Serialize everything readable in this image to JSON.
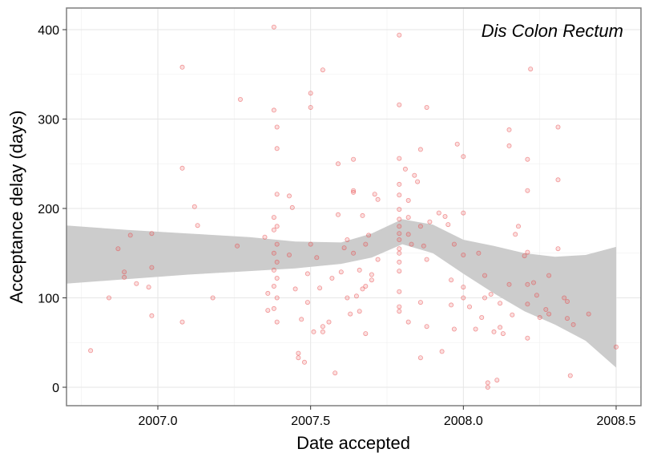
{
  "chart_data": {
    "type": "scatter",
    "title": "Dis Colon Rectum",
    "xlabel": "Date accepted",
    "ylabel": "Acceptance delay (days)",
    "xlim": [
      2006.7,
      2008.55
    ],
    "ylim": [
      -20,
      425
    ],
    "x_ticks": [
      2007.0,
      2007.5,
      2008.0,
      2008.5
    ],
    "x_tick_labels": [
      "2007.0",
      "2007.5",
      "2008.0",
      "2008.5"
    ],
    "y_ticks": [
      0,
      100,
      200,
      300,
      400
    ],
    "y_tick_labels": [
      "0",
      "100",
      "200",
      "300",
      "400"
    ],
    "grid": true,
    "point_color": "#e8484a",
    "band_color": "#cccccc",
    "points": [
      [
        2006.78,
        41
      ],
      [
        2006.84,
        100
      ],
      [
        2006.87,
        155
      ],
      [
        2006.89,
        123
      ],
      [
        2006.89,
        129
      ],
      [
        2006.91,
        170
      ],
      [
        2006.93,
        116
      ],
      [
        2006.97,
        112
      ],
      [
        2006.98,
        172
      ],
      [
        2006.98,
        80
      ],
      [
        2006.98,
        134
      ],
      [
        2007.08,
        358
      ],
      [
        2007.08,
        245
      ],
      [
        2007.08,
        73
      ],
      [
        2007.12,
        202
      ],
      [
        2007.13,
        181
      ],
      [
        2007.18,
        100
      ],
      [
        2007.26,
        158
      ],
      [
        2007.27,
        322
      ],
      [
        2007.35,
        168
      ],
      [
        2007.36,
        105
      ],
      [
        2007.36,
        86
      ],
      [
        2007.38,
        403
      ],
      [
        2007.38,
        310
      ],
      [
        2007.39,
        291
      ],
      [
        2007.39,
        267
      ],
      [
        2007.39,
        216
      ],
      [
        2007.38,
        190
      ],
      [
        2007.39,
        180
      ],
      [
        2007.38,
        176
      ],
      [
        2007.39,
        160
      ],
      [
        2007.38,
        150
      ],
      [
        2007.39,
        140
      ],
      [
        2007.38,
        131
      ],
      [
        2007.39,
        122
      ],
      [
        2007.38,
        113
      ],
      [
        2007.39,
        100
      ],
      [
        2007.38,
        88
      ],
      [
        2007.39,
        73
      ],
      [
        2007.43,
        214
      ],
      [
        2007.44,
        201
      ],
      [
        2007.43,
        148
      ],
      [
        2007.45,
        110
      ],
      [
        2007.46,
        38
      ],
      [
        2007.46,
        33
      ],
      [
        2007.47,
        76
      ],
      [
        2007.48,
        28
      ],
      [
        2007.49,
        127
      ],
      [
        2007.49,
        95
      ],
      [
        2007.5,
        329
      ],
      [
        2007.5,
        313
      ],
      [
        2007.5,
        160
      ],
      [
        2007.51,
        62
      ],
      [
        2007.52,
        145
      ],
      [
        2007.53,
        111
      ],
      [
        2007.54,
        355
      ],
      [
        2007.54,
        68
      ],
      [
        2007.54,
        62
      ],
      [
        2007.56,
        73
      ],
      [
        2007.57,
        122
      ],
      [
        2007.58,
        16
      ],
      [
        2007.59,
        193
      ],
      [
        2007.59,
        250
      ],
      [
        2007.6,
        129
      ],
      [
        2007.61,
        156
      ],
      [
        2007.62,
        165
      ],
      [
        2007.62,
        100
      ],
      [
        2007.63,
        82
      ],
      [
        2007.64,
        255
      ],
      [
        2007.64,
        220
      ],
      [
        2007.64,
        218
      ],
      [
        2007.64,
        150
      ],
      [
        2007.65,
        102
      ],
      [
        2007.66,
        131
      ],
      [
        2007.66,
        85
      ],
      [
        2007.67,
        192
      ],
      [
        2007.67,
        110
      ],
      [
        2007.68,
        113
      ],
      [
        2007.68,
        160
      ],
      [
        2007.68,
        60
      ],
      [
        2007.69,
        170
      ],
      [
        2007.7,
        126
      ],
      [
        2007.7,
        120
      ],
      [
        2007.71,
        216
      ],
      [
        2007.72,
        210
      ],
      [
        2007.72,
        143
      ],
      [
        2007.79,
        394
      ],
      [
        2007.79,
        316
      ],
      [
        2007.79,
        256
      ],
      [
        2007.79,
        227
      ],
      [
        2007.79,
        215
      ],
      [
        2007.79,
        199
      ],
      [
        2007.79,
        188
      ],
      [
        2007.79,
        180
      ],
      [
        2007.79,
        172
      ],
      [
        2007.79,
        165
      ],
      [
        2007.79,
        155
      ],
      [
        2007.79,
        150
      ],
      [
        2007.79,
        140
      ],
      [
        2007.79,
        130
      ],
      [
        2007.79,
        107
      ],
      [
        2007.79,
        90
      ],
      [
        2007.79,
        85
      ],
      [
        2007.81,
        244
      ],
      [
        2007.82,
        209
      ],
      [
        2007.82,
        190
      ],
      [
        2007.82,
        171
      ],
      [
        2007.82,
        73
      ],
      [
        2007.83,
        160
      ],
      [
        2007.84,
        237
      ],
      [
        2007.85,
        230
      ],
      [
        2007.86,
        266
      ],
      [
        2007.86,
        180
      ],
      [
        2007.86,
        95
      ],
      [
        2007.86,
        33
      ],
      [
        2007.87,
        158
      ],
      [
        2007.88,
        313
      ],
      [
        2007.88,
        143
      ],
      [
        2007.88,
        68
      ],
      [
        2007.89,
        185
      ],
      [
        2007.92,
        195
      ],
      [
        2007.93,
        40
      ],
      [
        2007.94,
        191
      ],
      [
        2007.95,
        182
      ],
      [
        2007.96,
        120
      ],
      [
        2007.96,
        92
      ],
      [
        2007.97,
        160
      ],
      [
        2007.97,
        65
      ],
      [
        2007.98,
        272
      ],
      [
        2008.0,
        258
      ],
      [
        2008.0,
        195
      ],
      [
        2008.0,
        148
      ],
      [
        2008.0,
        112
      ],
      [
        2008.0,
        100
      ],
      [
        2008.02,
        90
      ],
      [
        2008.04,
        65
      ],
      [
        2008.05,
        150
      ],
      [
        2008.06,
        78
      ],
      [
        2008.07,
        125
      ],
      [
        2008.07,
        100
      ],
      [
        2008.08,
        5
      ],
      [
        2008.08,
        0
      ],
      [
        2008.09,
        104
      ],
      [
        2008.1,
        62
      ],
      [
        2008.11,
        8
      ],
      [
        2008.12,
        94
      ],
      [
        2008.12,
        67
      ],
      [
        2008.13,
        60
      ],
      [
        2008.15,
        288
      ],
      [
        2008.15,
        270
      ],
      [
        2008.15,
        115
      ],
      [
        2008.16,
        81
      ],
      [
        2008.17,
        171
      ],
      [
        2008.18,
        180
      ],
      [
        2008.2,
        147
      ],
      [
        2008.21,
        255
      ],
      [
        2008.21,
        220
      ],
      [
        2008.21,
        151
      ],
      [
        2008.21,
        115
      ],
      [
        2008.21,
        93
      ],
      [
        2008.22,
        356
      ],
      [
        2008.23,
        117
      ],
      [
        2008.24,
        103
      ],
      [
        2008.25,
        78
      ],
      [
        2008.27,
        87
      ],
      [
        2008.28,
        125
      ],
      [
        2008.28,
        82
      ],
      [
        2008.31,
        291
      ],
      [
        2008.31,
        232
      ],
      [
        2008.31,
        155
      ],
      [
        2008.33,
        100
      ],
      [
        2008.34,
        96
      ],
      [
        2008.34,
        77
      ],
      [
        2008.35,
        13
      ],
      [
        2008.36,
        70
      ],
      [
        2008.41,
        82
      ],
      [
        2008.5,
        45
      ],
      [
        2008.21,
        55
      ]
    ],
    "smooth_band": {
      "x": [
        2006.7,
        2006.9,
        2007.1,
        2007.3,
        2007.45,
        2007.6,
        2007.7,
        2007.8,
        2007.9,
        2008.0,
        2008.1,
        2008.2,
        2008.3,
        2008.4,
        2008.5
      ],
      "upper": [
        181,
        176,
        172,
        168,
        163,
        162,
        172,
        188,
        182,
        165,
        158,
        150,
        146,
        148,
        157
      ],
      "lower": [
        116,
        121,
        126,
        130,
        133,
        138,
        145,
        160,
        150,
        127,
        105,
        85,
        70,
        52,
        22
      ]
    }
  }
}
